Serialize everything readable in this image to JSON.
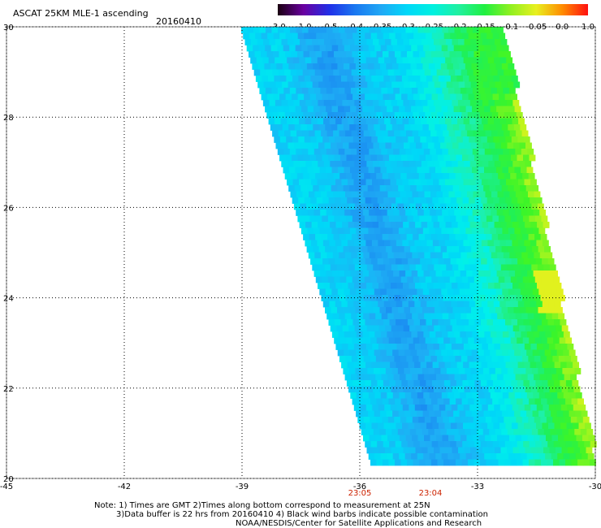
{
  "header": {
    "title": "ASCAT 25KM MLE-1 ascending",
    "date": "20160410"
  },
  "colorbar": {
    "labels": [
      "-3.0",
      "-1.0",
      "-0.5",
      "-0.4",
      "-0.35",
      "-0.3",
      "-0.25",
      "-0.2",
      "-0.15",
      "-0.1",
      "-0.05",
      "0.0",
      "1.0"
    ],
    "colors": [
      "#1a0010",
      "#6a00a0",
      "#2030e8",
      "#1a78f0",
      "#20a8f5",
      "#00d8f8",
      "#00f0e0",
      "#20f0a0",
      "#20f040",
      "#90f020",
      "#e8f020",
      "#ff8c00",
      "#ff1010"
    ]
  },
  "map": {
    "lon_range": [
      -45,
      -30
    ],
    "lat_range": [
      20,
      30
    ],
    "x_ticks": [
      "-45",
      "-42",
      "-39",
      "-36",
      "-33",
      "-30"
    ],
    "y_ticks": [
      "30",
      "28",
      "26",
      "24",
      "22",
      "20"
    ],
    "time_labels": [
      {
        "text": "23:05",
        "lon": -36
      },
      {
        "text": "23:04",
        "lon": -34.2
      }
    ],
    "swath_lat_range": [
      20.3,
      30
    ],
    "swath_lon_start": -38.8,
    "swath_lon_end": -32.6
  },
  "notes": [
    "Note: 1) Times are GMT 2)Times along bottom correspond to measurement at 25N",
    "3)Data buffer is 22 hrs from 20160410 4) Black wind barbs indicate possible contamination",
    "NOAA/NESDIS/Center for Satellite Applications and Research"
  ]
}
